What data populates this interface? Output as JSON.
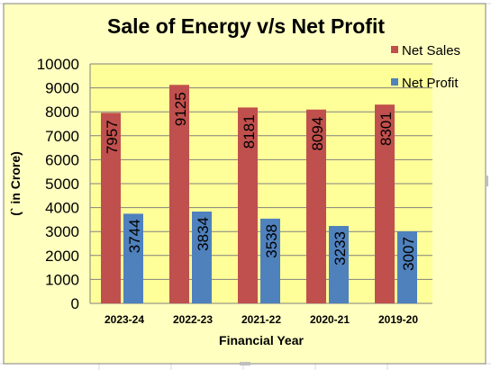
{
  "chart_data": {
    "type": "bar",
    "title": "Sale of Energy v/s  Net Profit",
    "xlabel": "Financial Year",
    "ylabel": "(` in Crore)",
    "categories": [
      "2023-24",
      "2022-23",
      "2021-22",
      "2020-21",
      "2019-20"
    ],
    "series": [
      {
        "name": "Net Sales",
        "values": [
          7957,
          9125,
          8181,
          8094,
          8301
        ],
        "color": "#c0504d"
      },
      {
        "name": "Net Profit",
        "values": [
          3744,
          3834,
          3538,
          3233,
          3007
        ],
        "color": "#4f81bd"
      }
    ],
    "ylim": [
      0,
      10000
    ],
    "yticks": [
      "0",
      "1000",
      "2000",
      "3000",
      "4000",
      "5000",
      "6000",
      "7000",
      "8000",
      "9000",
      "10000"
    ],
    "grid": true,
    "legend": "top-right",
    "plot_background": "#ffff99",
    "chart_background": "#ffffc0"
  }
}
